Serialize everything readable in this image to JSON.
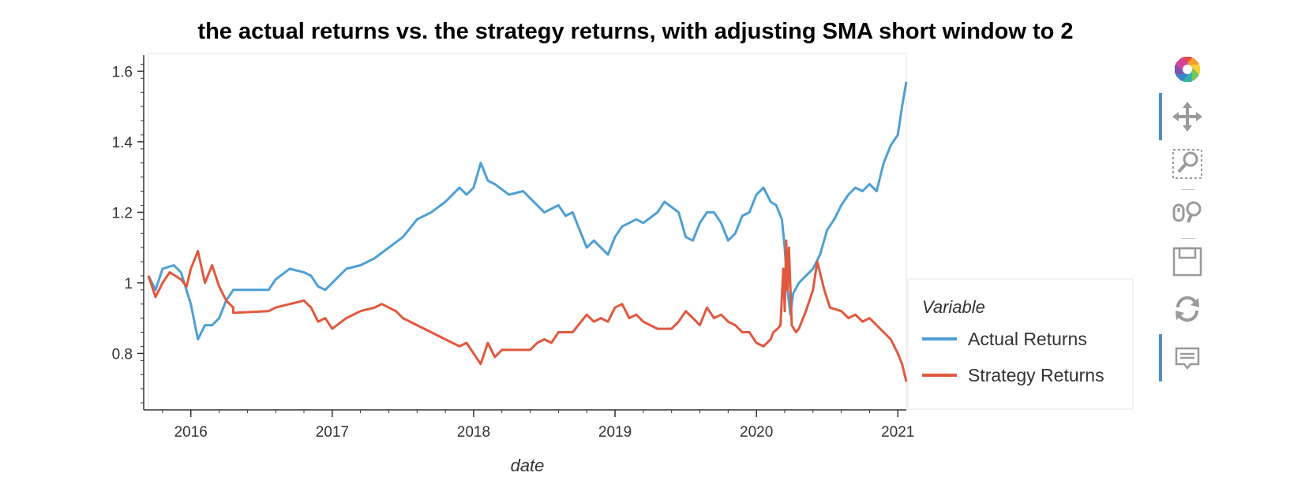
{
  "chart_data": {
    "type": "line",
    "title": "the actual returns vs. the strategy returns, with adjusting SMA short window to 2",
    "xlabel": "date",
    "ylabel": "",
    "xlim": [
      2015.7,
      2021.06
    ],
    "ylim": [
      0.64,
      1.65
    ],
    "x_ticks": [
      2016,
      2017,
      2018,
      2019,
      2020,
      2021
    ],
    "x_tick_labels": [
      "2016",
      "2017",
      "2018",
      "2019",
      "2020",
      "2021"
    ],
    "y_ticks": [
      0.8,
      1.0,
      1.2,
      1.4,
      1.6
    ],
    "y_tick_labels": [
      "0.8",
      "1",
      "1.2",
      "1.4",
      "1.6"
    ],
    "grid": false,
    "legend": {
      "title": "Variable",
      "position": "right"
    },
    "series": [
      {
        "name": "Actual Returns",
        "color": "#4e9fd6",
        "points": [
          [
            2015.7,
            1.02
          ],
          [
            2015.75,
            0.98
          ],
          [
            2015.8,
            1.04
          ],
          [
            2015.88,
            1.05
          ],
          [
            2015.93,
            1.03
          ],
          [
            2016.0,
            0.94
          ],
          [
            2016.05,
            0.84
          ],
          [
            2016.1,
            0.88
          ],
          [
            2016.15,
            0.88
          ],
          [
            2016.2,
            0.9
          ],
          [
            2016.25,
            0.95
          ],
          [
            2016.3,
            0.98
          ],
          [
            2016.55,
            0.98
          ],
          [
            2016.6,
            1.01
          ],
          [
            2016.7,
            1.04
          ],
          [
            2016.8,
            1.03
          ],
          [
            2016.85,
            1.02
          ],
          [
            2016.9,
            0.99
          ],
          [
            2016.95,
            0.98
          ],
          [
            2017.0,
            1.0
          ],
          [
            2017.1,
            1.04
          ],
          [
            2017.2,
            1.05
          ],
          [
            2017.3,
            1.07
          ],
          [
            2017.4,
            1.1
          ],
          [
            2017.5,
            1.13
          ],
          [
            2017.6,
            1.18
          ],
          [
            2017.7,
            1.2
          ],
          [
            2017.8,
            1.23
          ],
          [
            2017.9,
            1.27
          ],
          [
            2017.95,
            1.25
          ],
          [
            2018.0,
            1.27
          ],
          [
            2018.05,
            1.34
          ],
          [
            2018.1,
            1.29
          ],
          [
            2018.15,
            1.28
          ],
          [
            2018.25,
            1.25
          ],
          [
            2018.35,
            1.26
          ],
          [
            2018.45,
            1.22
          ],
          [
            2018.5,
            1.2
          ],
          [
            2018.6,
            1.22
          ],
          [
            2018.65,
            1.19
          ],
          [
            2018.7,
            1.2
          ],
          [
            2018.8,
            1.1
          ],
          [
            2018.85,
            1.12
          ],
          [
            2018.9,
            1.1
          ],
          [
            2018.95,
            1.08
          ],
          [
            2019.0,
            1.13
          ],
          [
            2019.05,
            1.16
          ],
          [
            2019.15,
            1.18
          ],
          [
            2019.2,
            1.17
          ],
          [
            2019.3,
            1.2
          ],
          [
            2019.35,
            1.23
          ],
          [
            2019.45,
            1.2
          ],
          [
            2019.5,
            1.13
          ],
          [
            2019.55,
            1.12
          ],
          [
            2019.6,
            1.17
          ],
          [
            2019.65,
            1.2
          ],
          [
            2019.7,
            1.2
          ],
          [
            2019.75,
            1.17
          ],
          [
            2019.8,
            1.12
          ],
          [
            2019.85,
            1.14
          ],
          [
            2019.9,
            1.19
          ],
          [
            2019.95,
            1.2
          ],
          [
            2020.0,
            1.25
          ],
          [
            2020.05,
            1.27
          ],
          [
            2020.1,
            1.23
          ],
          [
            2020.14,
            1.22
          ],
          [
            2020.18,
            1.18
          ],
          [
            2020.2,
            1.1
          ],
          [
            2020.22,
            0.98
          ],
          [
            2020.24,
            0.91
          ],
          [
            2020.26,
            0.97
          ],
          [
            2020.3,
            1.0
          ],
          [
            2020.35,
            1.02
          ],
          [
            2020.4,
            1.04
          ],
          [
            2020.45,
            1.08
          ],
          [
            2020.5,
            1.15
          ],
          [
            2020.55,
            1.18
          ],
          [
            2020.6,
            1.22
          ],
          [
            2020.65,
            1.25
          ],
          [
            2020.7,
            1.27
          ],
          [
            2020.75,
            1.26
          ],
          [
            2020.8,
            1.28
          ],
          [
            2020.85,
            1.26
          ],
          [
            2020.9,
            1.34
          ],
          [
            2020.95,
            1.39
          ],
          [
            2021.0,
            1.42
          ],
          [
            2021.03,
            1.5
          ],
          [
            2021.06,
            1.57
          ]
        ]
      },
      {
        "name": "Strategy Returns",
        "color": "#e0593e",
        "points": [
          [
            2015.7,
            1.02
          ],
          [
            2015.75,
            0.96
          ],
          [
            2015.8,
            1.0
          ],
          [
            2015.85,
            1.03
          ],
          [
            2015.93,
            1.01
          ],
          [
            2015.97,
            0.99
          ],
          [
            2016.0,
            1.04
          ],
          [
            2016.05,
            1.09
          ],
          [
            2016.1,
            1.0
          ],
          [
            2016.15,
            1.05
          ],
          [
            2016.2,
            0.99
          ],
          [
            2016.25,
            0.95
          ],
          [
            2016.3,
            0.93
          ],
          [
            2016.3,
            0.915
          ],
          [
            2016.55,
            0.92
          ],
          [
            2016.6,
            0.93
          ],
          [
            2016.7,
            0.94
          ],
          [
            2016.8,
            0.95
          ],
          [
            2016.85,
            0.93
          ],
          [
            2016.9,
            0.89
          ],
          [
            2016.95,
            0.9
          ],
          [
            2017.0,
            0.87
          ],
          [
            2017.1,
            0.9
          ],
          [
            2017.2,
            0.92
          ],
          [
            2017.3,
            0.93
          ],
          [
            2017.35,
            0.94
          ],
          [
            2017.45,
            0.92
          ],
          [
            2017.5,
            0.9
          ],
          [
            2017.55,
            0.89
          ],
          [
            2017.6,
            0.88
          ],
          [
            2017.7,
            0.86
          ],
          [
            2017.8,
            0.84
          ],
          [
            2017.9,
            0.82
          ],
          [
            2017.95,
            0.83
          ],
          [
            2018.0,
            0.8
          ],
          [
            2018.05,
            0.77
          ],
          [
            2018.1,
            0.83
          ],
          [
            2018.15,
            0.79
          ],
          [
            2018.2,
            0.81
          ],
          [
            2018.3,
            0.81
          ],
          [
            2018.4,
            0.81
          ],
          [
            2018.45,
            0.83
          ],
          [
            2018.5,
            0.84
          ],
          [
            2018.55,
            0.83
          ],
          [
            2018.6,
            0.86
          ],
          [
            2018.7,
            0.86
          ],
          [
            2018.8,
            0.91
          ],
          [
            2018.85,
            0.89
          ],
          [
            2018.9,
            0.9
          ],
          [
            2018.95,
            0.89
          ],
          [
            2019.0,
            0.93
          ],
          [
            2019.05,
            0.94
          ],
          [
            2019.1,
            0.9
          ],
          [
            2019.15,
            0.91
          ],
          [
            2019.2,
            0.89
          ],
          [
            2019.25,
            0.88
          ],
          [
            2019.3,
            0.87
          ],
          [
            2019.4,
            0.87
          ],
          [
            2019.45,
            0.89
          ],
          [
            2019.5,
            0.92
          ],
          [
            2019.55,
            0.9
          ],
          [
            2019.6,
            0.88
          ],
          [
            2019.65,
            0.93
          ],
          [
            2019.7,
            0.9
          ],
          [
            2019.75,
            0.91
          ],
          [
            2019.8,
            0.89
          ],
          [
            2019.85,
            0.88
          ],
          [
            2019.9,
            0.86
          ],
          [
            2019.95,
            0.86
          ],
          [
            2020.0,
            0.83
          ],
          [
            2020.05,
            0.82
          ],
          [
            2020.1,
            0.84
          ],
          [
            2020.12,
            0.86
          ],
          [
            2020.15,
            0.87
          ],
          [
            2020.17,
            0.88
          ],
          [
            2020.19,
            1.04
          ],
          [
            2020.2,
            0.92
          ],
          [
            2020.21,
            1.12
          ],
          [
            2020.22,
            0.98
          ],
          [
            2020.23,
            1.1
          ],
          [
            2020.25,
            0.88
          ],
          [
            2020.28,
            0.86
          ],
          [
            2020.3,
            0.87
          ],
          [
            2020.35,
            0.92
          ],
          [
            2020.4,
            0.98
          ],
          [
            2020.43,
            1.06
          ],
          [
            2020.48,
            0.98
          ],
          [
            2020.52,
            0.93
          ],
          [
            2020.6,
            0.92
          ],
          [
            2020.65,
            0.9
          ],
          [
            2020.7,
            0.91
          ],
          [
            2020.75,
            0.89
          ],
          [
            2020.8,
            0.9
          ],
          [
            2020.85,
            0.88
          ],
          [
            2020.9,
            0.86
          ],
          [
            2020.95,
            0.84
          ],
          [
            2021.0,
            0.8
          ],
          [
            2021.03,
            0.77
          ],
          [
            2021.06,
            0.72
          ]
        ]
      }
    ]
  },
  "toolbar": {
    "tools": [
      {
        "name": "bokeh-logo-icon",
        "active": false
      },
      {
        "name": "pan-tool-icon",
        "active": true
      },
      {
        "name": "box-zoom-tool-icon",
        "active": false
      },
      {
        "name": "wheel-zoom-tool-icon",
        "active": false
      },
      {
        "name": "save-tool-icon",
        "active": false
      },
      {
        "name": "reset-tool-icon",
        "active": false
      },
      {
        "name": "hover-tool-icon",
        "active": true
      }
    ]
  }
}
